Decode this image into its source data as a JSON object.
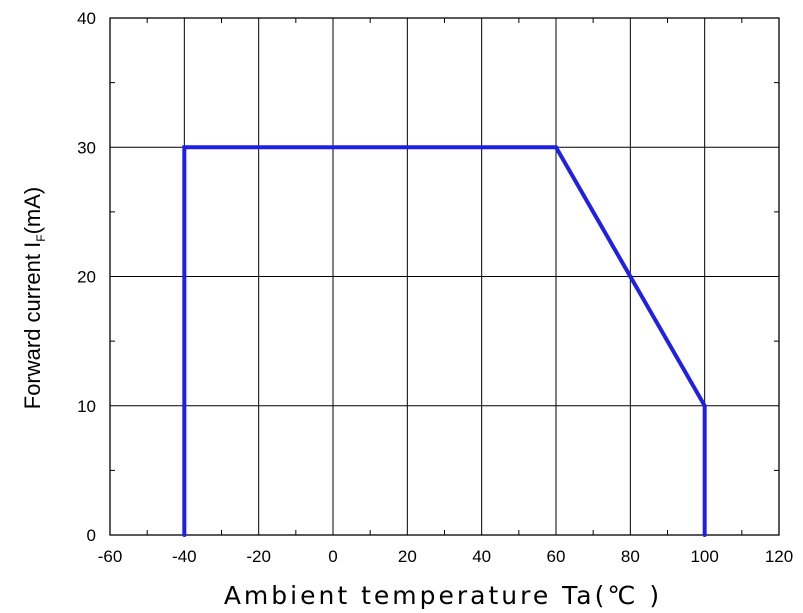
{
  "chart_data": {
    "type": "line",
    "title": "",
    "xlabel": "Ambient temperature Ta(℃ )",
    "ylabel": {
      "main": "Forward current I",
      "subscript": "F",
      "unit": "(mA)"
    },
    "xlim": [
      -60,
      120
    ],
    "ylim": [
      0,
      40
    ],
    "x_ticks": [
      -60,
      -40,
      -20,
      0,
      20,
      40,
      60,
      80,
      100,
      120
    ],
    "y_ticks": [
      0,
      10,
      20,
      30,
      40
    ],
    "grid": true,
    "legend": "none",
    "series": [
      {
        "color": "#1f1fe6",
        "x": [
          -40,
          -40,
          60,
          80,
          100,
          100
        ],
        "y": [
          0,
          30,
          30,
          20,
          10,
          0
        ]
      }
    ]
  }
}
